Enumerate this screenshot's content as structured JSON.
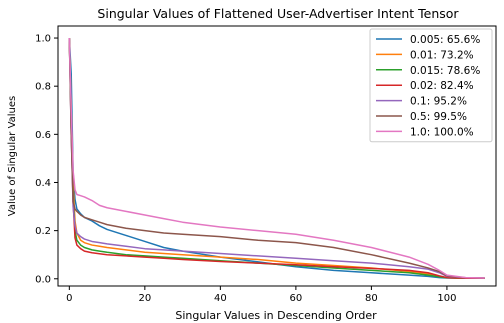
{
  "chart_data": {
    "type": "line",
    "title": "Singular Values of Flattened User-Advertiser Intent Tensor",
    "xlabel": "Singular Values in Descending Order",
    "ylabel": "Value of Singular Values",
    "xlim": [
      -3,
      113
    ],
    "ylim": [
      -0.03,
      1.05
    ],
    "xticks": [
      0,
      20,
      40,
      60,
      80,
      100
    ],
    "yticks": [
      0.0,
      0.2,
      0.4,
      0.6,
      0.8,
      1.0
    ],
    "xtick_labels": [
      "0",
      "20",
      "40",
      "60",
      "80",
      "100"
    ],
    "ytick_labels": [
      "0.0",
      "0.2",
      "0.4",
      "0.6",
      "0.8",
      "1.0"
    ],
    "grid": false,
    "legend_position": "top-right",
    "series": [
      {
        "name": "0.005: 65.6%",
        "color": "#1f77b4",
        "x": [
          0,
          0.5,
          1,
          1.5,
          2,
          3,
          4,
          6,
          8,
          10,
          15,
          20,
          25,
          30,
          40,
          50,
          60,
          70,
          80,
          90,
          95,
          98,
          100,
          105,
          110
        ],
        "y": [
          1.0,
          0.85,
          0.44,
          0.33,
          0.29,
          0.27,
          0.255,
          0.24,
          0.22,
          0.205,
          0.18,
          0.155,
          0.13,
          0.115,
          0.09,
          0.07,
          0.05,
          0.035,
          0.025,
          0.015,
          0.01,
          0.005,
          0.003,
          0.002,
          0.002
        ]
      },
      {
        "name": "0.01: 73.2%",
        "color": "#ff7f0e",
        "x": [
          0,
          0.5,
          1,
          1.5,
          2,
          3,
          4,
          6,
          8,
          10,
          15,
          20,
          25,
          30,
          40,
          50,
          60,
          70,
          80,
          90,
          95,
          98,
          100,
          105,
          110
        ],
        "y": [
          1.0,
          0.7,
          0.4,
          0.24,
          0.19,
          0.16,
          0.15,
          0.14,
          0.135,
          0.13,
          0.12,
          0.11,
          0.105,
          0.1,
          0.09,
          0.08,
          0.065,
          0.055,
          0.045,
          0.03,
          0.02,
          0.01,
          0.004,
          0.002,
          0.002
        ]
      },
      {
        "name": "0.015: 78.6%",
        "color": "#2ca02c",
        "x": [
          0,
          0.5,
          1,
          1.5,
          2,
          3,
          4,
          6,
          8,
          10,
          15,
          20,
          25,
          30,
          40,
          50,
          60,
          70,
          80,
          90,
          95,
          98,
          100,
          105,
          110
        ],
        "y": [
          1.0,
          0.65,
          0.35,
          0.2,
          0.16,
          0.14,
          0.13,
          0.12,
          0.115,
          0.11,
          0.1,
          0.095,
          0.09,
          0.085,
          0.075,
          0.065,
          0.055,
          0.045,
          0.035,
          0.025,
          0.015,
          0.008,
          0.004,
          0.002,
          0.002
        ]
      },
      {
        "name": "0.02: 82.4%",
        "color": "#d62728",
        "x": [
          0,
          0.5,
          1,
          1.5,
          2,
          3,
          4,
          6,
          8,
          10,
          15,
          20,
          25,
          30,
          40,
          50,
          60,
          70,
          80,
          90,
          95,
          98,
          100,
          105,
          110
        ],
        "y": [
          1.0,
          0.62,
          0.32,
          0.17,
          0.14,
          0.125,
          0.115,
          0.108,
          0.104,
          0.1,
          0.095,
          0.09,
          0.085,
          0.08,
          0.072,
          0.065,
          0.058,
          0.05,
          0.043,
          0.035,
          0.025,
          0.012,
          0.005,
          0.002,
          0.002
        ]
      },
      {
        "name": "0.1: 95.2%",
        "color": "#9467bd",
        "x": [
          0,
          0.5,
          1,
          1.5,
          2,
          3,
          4,
          6,
          8,
          10,
          15,
          20,
          25,
          30,
          40,
          50,
          60,
          70,
          80,
          90,
          95,
          98,
          100,
          105,
          110
        ],
        "y": [
          1.0,
          0.6,
          0.3,
          0.22,
          0.19,
          0.175,
          0.165,
          0.155,
          0.15,
          0.145,
          0.135,
          0.125,
          0.12,
          0.115,
          0.105,
          0.095,
          0.085,
          0.075,
          0.065,
          0.05,
          0.04,
          0.025,
          0.01,
          0.004,
          0.003
        ]
      },
      {
        "name": "0.5: 99.5%",
        "color": "#8c564b",
        "x": [
          0,
          0.5,
          1,
          1.5,
          2,
          3,
          4,
          6,
          8,
          10,
          15,
          20,
          25,
          30,
          40,
          50,
          60,
          70,
          80,
          90,
          95,
          98,
          100,
          105,
          110
        ],
        "y": [
          1.0,
          0.6,
          0.32,
          0.29,
          0.28,
          0.265,
          0.255,
          0.245,
          0.235,
          0.225,
          0.21,
          0.2,
          0.19,
          0.185,
          0.175,
          0.16,
          0.15,
          0.13,
          0.1,
          0.065,
          0.045,
          0.03,
          0.012,
          0.004,
          0.003
        ]
      },
      {
        "name": "1.0: 100.0%",
        "color": "#e377c2",
        "x": [
          0,
          0.5,
          1,
          1.5,
          2,
          3,
          4,
          6,
          8,
          10,
          15,
          20,
          25,
          30,
          40,
          50,
          60,
          70,
          80,
          90,
          95,
          98,
          100,
          105,
          110
        ],
        "y": [
          1.0,
          0.7,
          0.45,
          0.37,
          0.35,
          0.345,
          0.34,
          0.325,
          0.305,
          0.295,
          0.28,
          0.265,
          0.25,
          0.235,
          0.215,
          0.2,
          0.185,
          0.16,
          0.13,
          0.09,
          0.06,
          0.035,
          0.015,
          0.005,
          0.003
        ]
      }
    ]
  }
}
